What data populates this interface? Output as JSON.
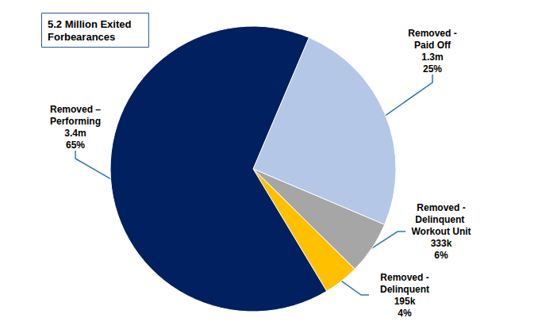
{
  "chart_data": {
    "type": "pie",
    "title": "5.2 Million Exited Forbearances",
    "categories": [
      "Removed - Paid Off",
      "Removed - Delinquent Workout Unit",
      "Removed - Delinquent",
      "Removed – Performing"
    ],
    "values": [
      25,
      6,
      4,
      65
    ],
    "value_labels": [
      "25%",
      "6%",
      "4%",
      "65%"
    ],
    "counts": [
      1300000,
      333000,
      195000,
      3400000
    ],
    "count_labels": [
      "1.3m",
      "333k",
      "195k",
      "3.4m"
    ],
    "colors": [
      "#b4c7e7",
      "#a6a6a6",
      "#ffc000",
      "#002060"
    ],
    "data_labels": true
  }
}
